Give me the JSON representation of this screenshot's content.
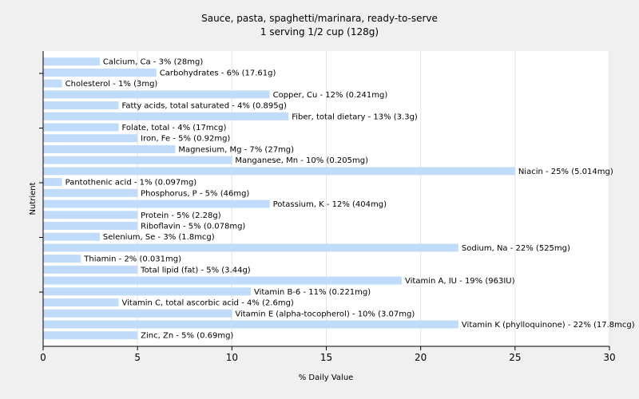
{
  "chart_data": {
    "type": "bar",
    "orientation": "horizontal",
    "title": "Sauce, pasta, spaghetti/marinara, ready-to-serve",
    "subtitle": "1 serving 1/2 cup (128g)",
    "xlabel": "% Daily Value",
    "ylabel": "Nutrient",
    "xlim": [
      0,
      30
    ],
    "xticks": [
      0,
      5,
      10,
      15,
      20,
      25,
      30
    ],
    "grid": true,
    "bar_color": "#c0dcfa",
    "categories": [
      "Calcium, Ca",
      "Carbohydrates",
      "Cholesterol",
      "Copper, Cu",
      "Fatty acids, total saturated",
      "Fiber, total dietary",
      "Folate, total",
      "Iron, Fe",
      "Magnesium, Mg",
      "Manganese, Mn",
      "Niacin",
      "Pantothenic acid",
      "Phosphorus, P",
      "Potassium, K",
      "Protein",
      "Riboflavin",
      "Selenium, Se",
      "Sodium, Na",
      "Thiamin",
      "Total lipid (fat)",
      "Vitamin A, IU",
      "Vitamin B-6",
      "Vitamin C, total ascorbic acid",
      "Vitamin E (alpha-tocopherol)",
      "Vitamin K (phylloquinone)",
      "Zinc, Zn"
    ],
    "values": [
      3,
      6,
      1,
      12,
      4,
      13,
      4,
      5,
      7,
      10,
      25,
      1,
      5,
      12,
      5,
      5,
      3,
      22,
      2,
      5,
      19,
      11,
      4,
      10,
      22,
      5
    ],
    "labels": [
      "Calcium, Ca - 3% (28mg)",
      "Carbohydrates - 6% (17.61g)",
      "Cholesterol - 1% (3mg)",
      "Copper, Cu - 12% (0.241mg)",
      "Fatty acids, total saturated - 4% (0.895g)",
      "Fiber, total dietary - 13% (3.3g)",
      "Folate, total - 4% (17mcg)",
      "Iron, Fe - 5% (0.92mg)",
      "Magnesium, Mg - 7% (27mg)",
      "Manganese, Mn - 10% (0.205mg)",
      "Niacin - 25% (5.014mg)",
      "Pantothenic acid - 1% (0.097mg)",
      "Phosphorus, P - 5% (46mg)",
      "Potassium, K - 12% (404mg)",
      "Protein - 5% (2.28g)",
      "Riboflavin - 5% (0.078mg)",
      "Selenium, Se - 3% (1.8mcg)",
      "Sodium, Na - 22% (525mg)",
      "Thiamin - 2% (0.031mg)",
      "Total lipid (fat) - 5% (3.44g)",
      "Vitamin A, IU - 19% (963IU)",
      "Vitamin B-6 - 11% (0.221mg)",
      "Vitamin C, total ascorbic acid - 4% (2.6mg)",
      "Vitamin E (alpha-tocopherol) - 10% (3.07mg)",
      "Vitamin K (phylloquinone) - 22% (17.8mcg)",
      "Zinc, Zn - 5% (0.69mg)"
    ]
  }
}
